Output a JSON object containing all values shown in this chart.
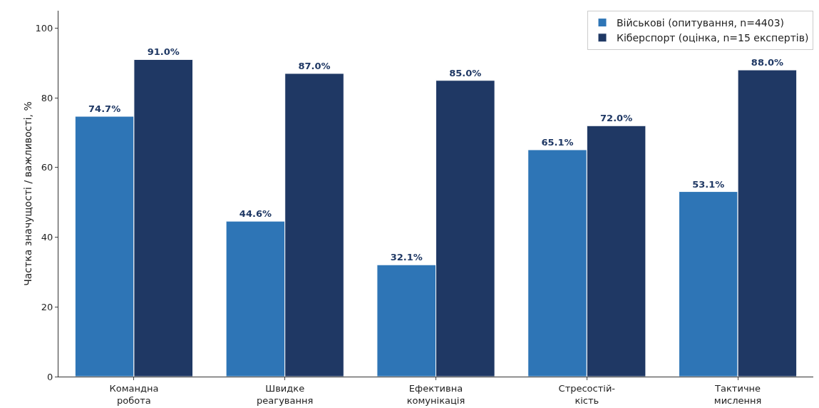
{
  "chart_data": {
    "type": "bar",
    "ylabel": "Частка значущості / важливості, %",
    "categories": [
      "Командна\nробота",
      "Швидке\nреагування",
      "Ефективна\nкомунікація",
      "Стресостій-\nкість",
      "Тактичне\nмислення"
    ],
    "series": [
      {
        "name": "Військові (опитування, n=4403)",
        "color": "#2e75b6",
        "values": [
          74.7,
          44.6,
          32.1,
          65.1,
          53.1
        ],
        "value_labels": [
          "74.7%",
          "44.6%",
          "32.1%",
          "65.1%",
          "53.1%"
        ]
      },
      {
        "name": "Кіберспорт (оцінка, n=15 експертів)",
        "color": "#1f3864",
        "values": [
          91.0,
          87.0,
          85.0,
          72.0,
          88.0
        ],
        "value_labels": [
          "91.0%",
          "87.0%",
          "85.0%",
          "72.0%",
          "88.0%"
        ]
      }
    ],
    "ylim": [
      0,
      105
    ],
    "yticks": [
      0,
      20,
      40,
      60,
      80,
      100
    ],
    "grid": false,
    "legend": "top right"
  }
}
